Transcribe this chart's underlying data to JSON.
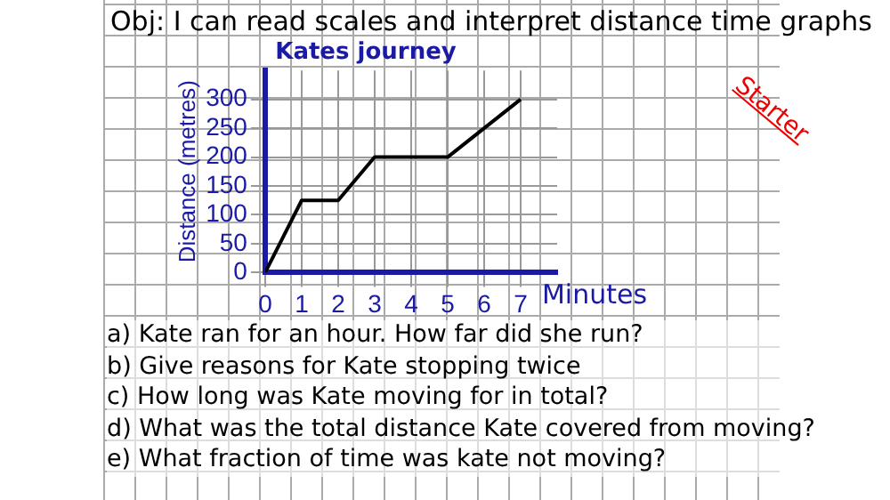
{
  "chart_data": {
    "type": "line",
    "title": "Obj: I can read scales and interpret distance time graphs",
    "subtitle": "Kates journey",
    "xlabel": "Minutes",
    "ylabel": "Distance (metres)",
    "x": [
      0,
      1,
      2,
      3,
      5,
      7
    ],
    "series": [
      {
        "color": "#000000",
        "values": [
          0,
          125,
          125,
          200,
          200,
          300
        ]
      }
    ],
    "xlim": [
      0,
      8
    ],
    "xticks": [
      0,
      1,
      2,
      3,
      4,
      5,
      6,
      7
    ],
    "ylim": [
      0,
      350
    ],
    "yticks": [
      0,
      50,
      100,
      150,
      200,
      250,
      300
    ],
    "grid": true,
    "legend": false,
    "marker": "none",
    "line_style": "solid",
    "annotations": [
      "Starter",
      "a) Kate ran for an hour. How far did she run?",
      "b) Give reasons for Kate stopping twice",
      "c) How long was Kate moving for in total?",
      "d) What was the total distance Kate covered from moving?",
      "e) What fraction of time was kate not moving?"
    ]
  }
}
